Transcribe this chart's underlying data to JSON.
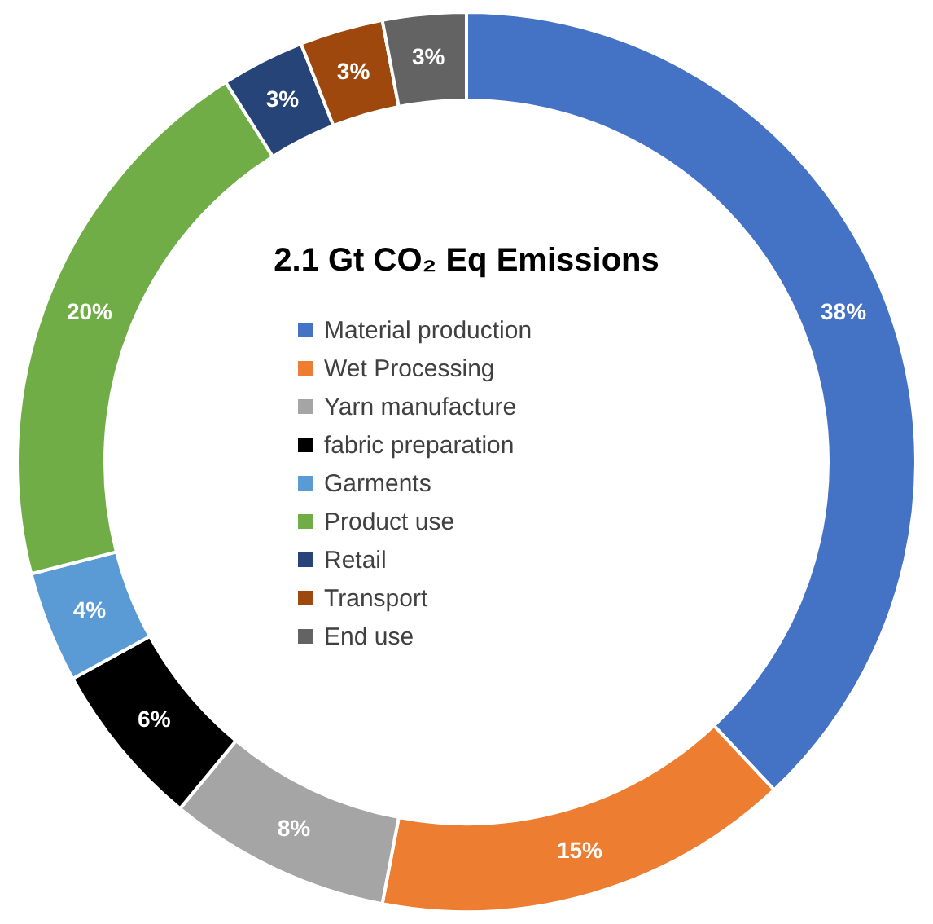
{
  "chart_data": {
    "type": "donut",
    "title": "2.1 Gt CO₂ Eq Emissions",
    "categories": [
      "Material production",
      "Wet Processing",
      "Yarn manufacture",
      "fabric preparation",
      "Garments",
      "Product use",
      "Retail",
      "Transport",
      "End use"
    ],
    "values": [
      38,
      15,
      8,
      6,
      4,
      20,
      3,
      3,
      3
    ],
    "value_labels": [
      "38%",
      "15%",
      "8%",
      "6%",
      "4%",
      "20%",
      "3%",
      "3%",
      "3%"
    ],
    "colors": [
      "#4472c4",
      "#ed7d31",
      "#a5a5a5",
      "#000000",
      "#5b9bd5",
      "#70ad47",
      "#264478",
      "#9e480e",
      "#636363"
    ],
    "legend": "center"
  }
}
